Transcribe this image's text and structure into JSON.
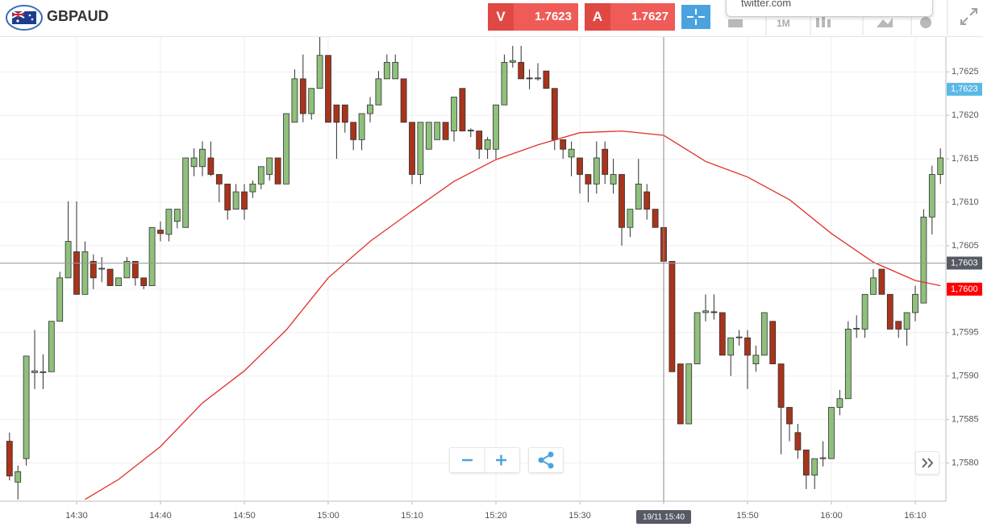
{
  "header": {
    "symbol": "GBPAUD",
    "bid": {
      "letter": "V",
      "price": 1.7623
    },
    "ask": {
      "letter": "A",
      "price": 1.7627
    },
    "popup": "twitter.com",
    "timeframe": "1M"
  },
  "chart_data": {
    "type": "candlestick",
    "categories": [
      "14:22",
      "14:23",
      "14:24",
      "14:25",
      "14:26",
      "14:27",
      "14:28",
      "14:29",
      "14:30",
      "14:31",
      "14:32",
      "14:33",
      "14:34",
      "14:35",
      "14:36",
      "14:37",
      "14:38",
      "14:39",
      "14:40",
      "14:41",
      "14:42",
      "14:43",
      "14:44",
      "14:45",
      "14:46",
      "14:47",
      "14:48",
      "14:49",
      "14:50",
      "14:51",
      "14:52",
      "14:53",
      "14:54",
      "14:55",
      "14:56",
      "14:57",
      "14:58",
      "14:59",
      "15:00",
      "15:01",
      "15:02",
      "15:03",
      "15:04",
      "15:05",
      "15:06",
      "15:07",
      "15:08",
      "15:09",
      "15:10",
      "15:11",
      "15:12",
      "15:13",
      "15:14",
      "15:15",
      "15:16",
      "15:17",
      "15:18",
      "15:19",
      "15:20",
      "15:21",
      "15:22",
      "15:23",
      "15:24",
      "15:25",
      "15:26",
      "15:27",
      "15:28",
      "15:29",
      "15:30",
      "15:31",
      "15:32",
      "15:33",
      "15:34",
      "15:35",
      "15:36",
      "15:37",
      "15:38",
      "15:39",
      "15:40",
      "15:41",
      "15:42",
      "15:43",
      "15:44",
      "15:45",
      "15:46",
      "15:47",
      "15:48",
      "15:49",
      "15:50",
      "15:51",
      "15:52",
      "15:53",
      "15:54",
      "15:55",
      "15:56",
      "15:57",
      "15:58",
      "15:59",
      "16:00",
      "16:01",
      "16:02",
      "16:03",
      "16:04",
      "16:05",
      "16:06",
      "16:07",
      "16:08",
      "16:09",
      "16:10",
      "16:11",
      "16:12",
      "16:13"
    ],
    "open": [
      1.75825,
      1.75778,
      1.75805,
      1.75904,
      1.75904,
      1.75905,
      1.75963,
      1.76013,
      1.76043,
      1.75994,
      1.76032,
      1.76023,
      1.76023,
      1.76004,
      1.76013,
      1.76032,
      1.76013,
      1.76004,
      1.76068,
      1.76063,
      1.76078,
      1.76071,
      1.76141,
      1.76141,
      1.76151,
      1.76132,
      1.76121,
      1.76092,
      1.76112,
      1.76112,
      1.76121,
      1.76132,
      1.76151,
      1.76121,
      1.76192,
      1.76242,
      1.76202,
      1.76231,
      1.76269,
      1.76212,
      1.76212,
      1.76192,
      1.76172,
      1.76202,
      1.76212,
      1.76242,
      1.76242,
      1.76242,
      1.76192,
      1.76132,
      1.76161,
      1.76172,
      1.76192,
      1.76182,
      1.76231,
      1.76182,
      1.76182,
      1.76161,
      1.76161,
      1.76212,
      1.76261,
      1.76261,
      1.76243,
      1.76242,
      1.76251,
      1.76231,
      1.76172,
      1.76152,
      1.76151,
      1.76132,
      1.76121,
      1.76161,
      1.76121,
      1.76132,
      1.76071,
      1.76092,
      1.76112,
      1.76092,
      1.76071,
      1.76032,
      1.75914,
      1.75845,
      1.75914,
      1.75973,
      1.75974,
      1.75973,
      1.75924,
      1.75944,
      1.75944,
      1.75914,
      1.75924,
      1.75963,
      1.75914,
      1.75864,
      1.75835,
      1.75815,
      1.75786,
      1.75805,
      1.75805,
      1.75864,
      1.75874,
      1.75954,
      1.75954,
      1.75994,
      1.76023,
      1.75994,
      1.75963,
      1.75954,
      1.75973,
      1.75984,
      1.76083,
      1.76132
    ],
    "high": [
      1.75835,
      1.75797,
      1.75923,
      1.75953,
      1.75925,
      1.75963,
      1.7602,
      1.76101,
      1.76101,
      1.76055,
      1.7604,
      1.76037,
      1.76023,
      1.76013,
      1.76037,
      1.76032,
      1.76013,
      1.76071,
      1.76078,
      1.76092,
      1.76092,
      1.76151,
      1.76162,
      1.7617,
      1.7617,
      1.76132,
      1.76121,
      1.76121,
      1.76121,
      1.76125,
      1.76141,
      1.76151,
      1.76151,
      1.76202,
      1.76253,
      1.7627,
      1.76231,
      1.76291,
      1.76269,
      1.76212,
      1.76212,
      1.76192,
      1.76202,
      1.76221,
      1.76251,
      1.7627,
      1.7627,
      1.76242,
      1.76192,
      1.76192,
      1.76192,
      1.76192,
      1.76192,
      1.76221,
      1.76231,
      1.76185,
      1.76182,
      1.76175,
      1.76212,
      1.7627,
      1.7628,
      1.7628,
      1.76253,
      1.7626,
      1.76251,
      1.76231,
      1.76172,
      1.7617,
      1.76151,
      1.76132,
      1.7617,
      1.7617,
      1.7615,
      1.76132,
      1.76092,
      1.7615,
      1.76121,
      1.76092,
      1.76071,
      1.76032,
      1.75914,
      1.75914,
      1.75973,
      1.75994,
      1.75994,
      1.75973,
      1.75944,
      1.75953,
      1.75953,
      1.75935,
      1.75973,
      1.75963,
      1.75914,
      1.75864,
      1.75845,
      1.75815,
      1.75805,
      1.75825,
      1.75864,
      1.75884,
      1.75963,
      1.7597,
      1.75994,
      1.76023,
      1.76023,
      1.75994,
      1.75963,
      1.75973,
      1.76004,
      1.76092,
      1.76142,
      1.76162
    ],
    "low": [
      1.7578,
      1.75758,
      1.75797,
      1.75885,
      1.75885,
      1.75905,
      1.75963,
      1.76013,
      1.75994,
      1.75994,
      1.76,
      1.76008,
      1.76004,
      1.76004,
      1.76013,
      1.76004,
      1.76,
      1.76004,
      1.76055,
      1.76055,
      1.7607,
      1.76071,
      1.7613,
      1.7613,
      1.7613,
      1.761,
      1.7608,
      1.76092,
      1.7608,
      1.76105,
      1.76115,
      1.76125,
      1.76121,
      1.76121,
      1.76192,
      1.76192,
      1.76195,
      1.76231,
      1.76192,
      1.7615,
      1.7618,
      1.7616,
      1.7616,
      1.76192,
      1.76212,
      1.76242,
      1.76242,
      1.76192,
      1.76121,
      1.76121,
      1.76161,
      1.76172,
      1.76172,
      1.7617,
      1.76182,
      1.76175,
      1.7615,
      1.7615,
      1.7615,
      1.76212,
      1.76255,
      1.76242,
      1.7623,
      1.7624,
      1.76231,
      1.7616,
      1.7615,
      1.7613,
      1.7611,
      1.761,
      1.7611,
      1.76121,
      1.7611,
      1.7605,
      1.7606,
      1.76092,
      1.7608,
      1.76071,
      1.7601,
      1.75905,
      1.75845,
      1.75845,
      1.75914,
      1.75963,
      1.75965,
      1.75924,
      1.759,
      1.75935,
      1.75885,
      1.75905,
      1.75924,
      1.75914,
      1.7581,
      1.75825,
      1.75805,
      1.7577,
      1.7577,
      1.75796,
      1.75805,
      1.75855,
      1.75874,
      1.75944,
      1.75944,
      1.75994,
      1.75994,
      1.75954,
      1.75944,
      1.75935,
      1.75963,
      1.75984,
      1.76063,
      1.76121
    ],
    "close": [
      1.75785,
      1.7579,
      1.75923,
      1.75906,
      1.75905,
      1.75963,
      1.76013,
      1.76055,
      1.75994,
      1.76043,
      1.76013,
      1.76024,
      1.76004,
      1.76013,
      1.76032,
      1.76013,
      1.76004,
      1.76071,
      1.76064,
      1.76092,
      1.76092,
      1.76151,
      1.76151,
      1.76161,
      1.76132,
      1.76121,
      1.76091,
      1.76112,
      1.76092,
      1.76121,
      1.76141,
      1.76151,
      1.76121,
      1.76202,
      1.76242,
      1.76202,
      1.76231,
      1.76269,
      1.76192,
      1.76192,
      1.76192,
      1.76172,
      1.76202,
      1.76212,
      1.76242,
      1.76261,
      1.76261,
      1.76192,
      1.76132,
      1.76192,
      1.76192,
      1.76192,
      1.76172,
      1.76221,
      1.76182,
      1.76183,
      1.76161,
      1.76172,
      1.76212,
      1.76261,
      1.76263,
      1.76242,
      1.76242,
      1.76243,
      1.76231,
      1.76172,
      1.76161,
      1.76161,
      1.76132,
      1.76121,
      1.76151,
      1.76132,
      1.76132,
      1.76071,
      1.76092,
      1.76121,
      1.76092,
      1.76071,
      1.76032,
      1.75905,
      1.75845,
      1.75914,
      1.75973,
      1.75975,
      1.75973,
      1.75924,
      1.75944,
      1.75945,
      1.75924,
      1.75924,
      1.75973,
      1.75914,
      1.75864,
      1.75845,
      1.75815,
      1.75786,
      1.75805,
      1.75806,
      1.75864,
      1.75874,
      1.75954,
      1.75955,
      1.75994,
      1.76013,
      1.75994,
      1.75954,
      1.75954,
      1.75973,
      1.75994,
      1.76083,
      1.76132,
      1.76151
    ],
    "up_color": "#8fc07c",
    "down_color": "#a8341b",
    "outline": "#2f2f2f",
    "ma": {
      "color": "#e0302a",
      "x": [
        "14:31",
        "14:35",
        "14:40",
        "14:45",
        "14:50",
        "14:55",
        "15:00",
        "15:05",
        "15:10",
        "15:15",
        "15:20",
        "15:25",
        "15:30",
        "15:35",
        "15:40",
        "15:45",
        "15:50",
        "15:55",
        "16:00",
        "16:05",
        "16:10",
        "16:13"
      ],
      "values": [
        1.75758,
        1.75781,
        1.75819,
        1.75869,
        1.75906,
        1.75953,
        1.76013,
        1.76055,
        1.7609,
        1.76124,
        1.76149,
        1.76166,
        1.7618,
        1.76182,
        1.76177,
        1.76147,
        1.76129,
        1.76103,
        1.76064,
        1.76031,
        1.7601,
        1.76004
      ]
    },
    "ylim": [
      1.75756,
      1.76291
    ],
    "yticks": [
      {
        "value": 1.758,
        "label": "1,7580"
      },
      {
        "value": 1.7585,
        "label": "1,7585"
      },
      {
        "value": 1.759,
        "label": "1,7590"
      },
      {
        "value": 1.7595,
        "label": "1,7595"
      },
      {
        "value": 1.76,
        "label": "1,7600"
      },
      {
        "value": 1.7605,
        "label": "1,7605"
      },
      {
        "value": 1.761,
        "label": "1,7610"
      },
      {
        "value": 1.7615,
        "label": "1,7615"
      },
      {
        "value": 1.762,
        "label": "1,7620"
      },
      {
        "value": 1.7625,
        "label": "1,7625"
      }
    ],
    "xticks": [
      "14:30",
      "14:40",
      "14:50",
      "15:00",
      "15:10",
      "15:20",
      "15:30",
      "15:40",
      "15:50",
      "16:00",
      "16:10"
    ],
    "grid": true,
    "price_labels": [
      {
        "value": 1.7623,
        "label": "1,7623",
        "color": "#5bb8e6"
      },
      {
        "value": 1.76,
        "label": "1,7600",
        "color": "#ff0000"
      }
    ],
    "crosshair": {
      "x": "15:40",
      "x_label": "19/11 15:40",
      "y": {
        "value": 1.7603,
        "label": "1,7603"
      },
      "color": "#555a64"
    }
  }
}
